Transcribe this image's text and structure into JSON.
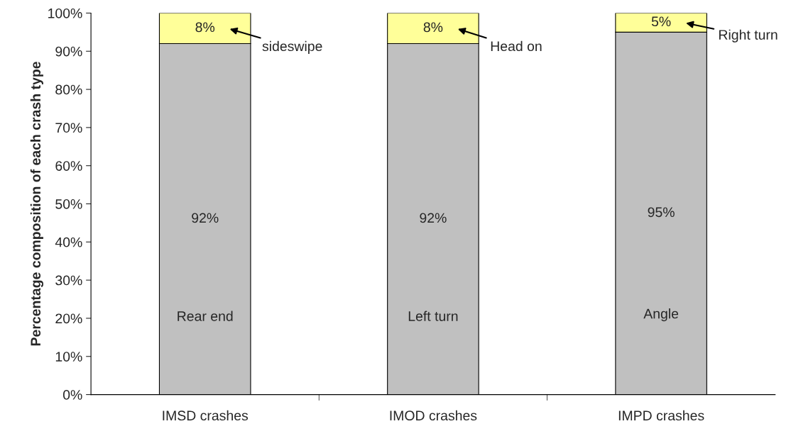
{
  "chart_data": {
    "type": "bar",
    "stacked": true,
    "ylabel": "Percentage composition of each crash type",
    "categories": [
      "IMSD crashes",
      "IMOD crashes",
      "IMPD crashes"
    ],
    "series": [
      {
        "color": "#c0c0c0",
        "values": [
          92,
          92,
          95
        ],
        "value_labels": [
          "92%",
          "92%",
          "95%"
        ]
      },
      {
        "color": "#ffff99",
        "values": [
          8,
          8,
          5
        ],
        "value_labels": [
          "8%",
          "8%",
          "5%"
        ]
      }
    ],
    "ylim": [
      0,
      100
    ],
    "yticks": [
      {
        "value": 0,
        "label": "0%"
      },
      {
        "value": 10,
        "label": "10%"
      },
      {
        "value": 20,
        "label": "20%"
      },
      {
        "value": 30,
        "label": "30%"
      },
      {
        "value": 40,
        "label": "40%"
      },
      {
        "value": 50,
        "label": "50%"
      },
      {
        "value": 60,
        "label": "60%"
      },
      {
        "value": 70,
        "label": "70%"
      },
      {
        "value": 80,
        "label": "80%"
      },
      {
        "value": 90,
        "label": "90%"
      },
      {
        "value": 100,
        "label": "100%"
      }
    ],
    "annotations": [
      "Rear end",
      "Left turn",
      "Angle",
      "sideswipe",
      "Head on",
      "Right turn"
    ]
  }
}
